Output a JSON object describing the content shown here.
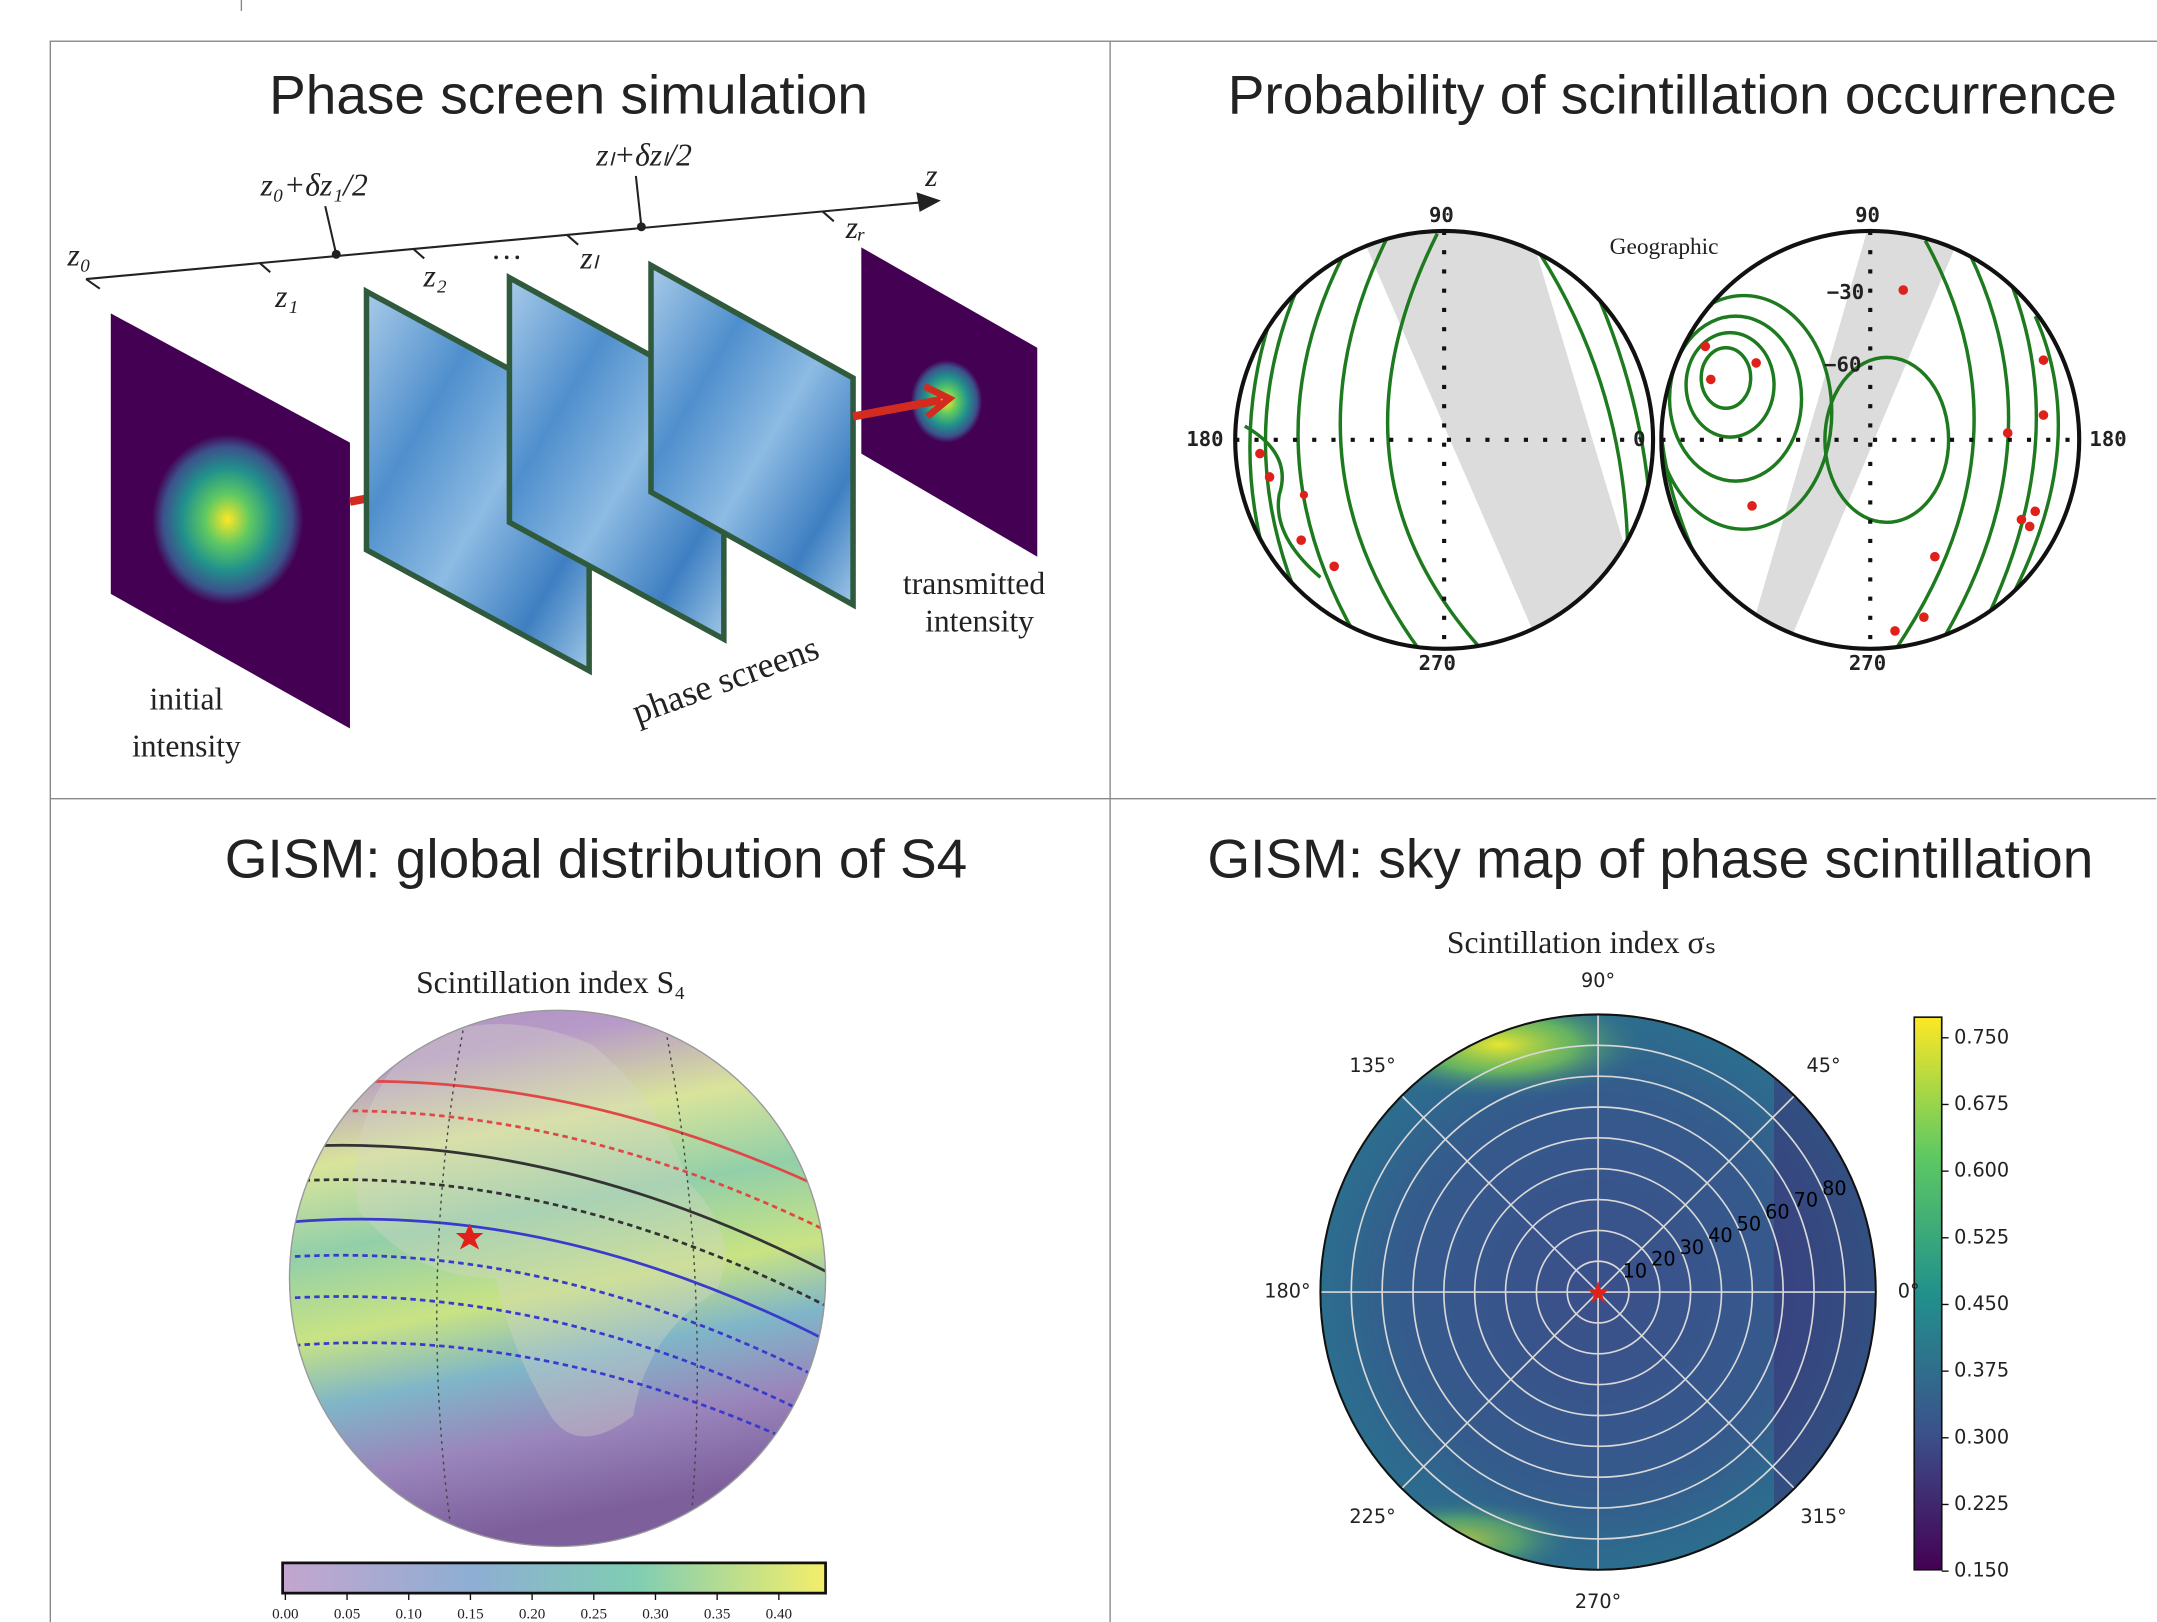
{
  "panels": [
    {
      "title": "Phase screen simulation",
      "axis_labels": [
        "z₀+δz₁/2",
        "zₗ+δzₗ/2",
        "z",
        "z₀",
        "z₁",
        "z₂",
        "…",
        "zₗ",
        "zᵣ"
      ],
      "captions": [
        "initial",
        "intensity",
        "phase screens",
        "transmitted",
        "intensity"
      ]
    },
    {
      "title": "Probability of scintillation occurrence",
      "frame_label": "Geographic",
      "left_dial": [
        "90",
        "180",
        "270",
        "0"
      ],
      "right_dial": [
        "90",
        "−30",
        "−60",
        "180",
        "270"
      ]
    },
    {
      "title": "GISM: global distribution of S4",
      "subtitle": "Scintillation index S₄",
      "colorbar_ticks": [
        "0.00",
        "0.05",
        "0.10",
        "0.15",
        "0.20",
        "0.25",
        "0.30",
        "0.35",
        "0.40"
      ]
    },
    {
      "title": "GISM: sky map of phase scintillation",
      "subtitle": "Scintillation index σₛ",
      "angle_labels": [
        "90°",
        "45°",
        "0°",
        "315°",
        "270°",
        "225°",
        "180°",
        "135°"
      ],
      "radial_labels": [
        "10",
        "20",
        "30",
        "40",
        "50",
        "60",
        "70",
        "80"
      ],
      "colorbar_ticks": [
        "0.750",
        "0.675",
        "0.600",
        "0.525",
        "0.450",
        "0.375",
        "0.300",
        "0.225",
        "0.150"
      ]
    }
  ]
}
